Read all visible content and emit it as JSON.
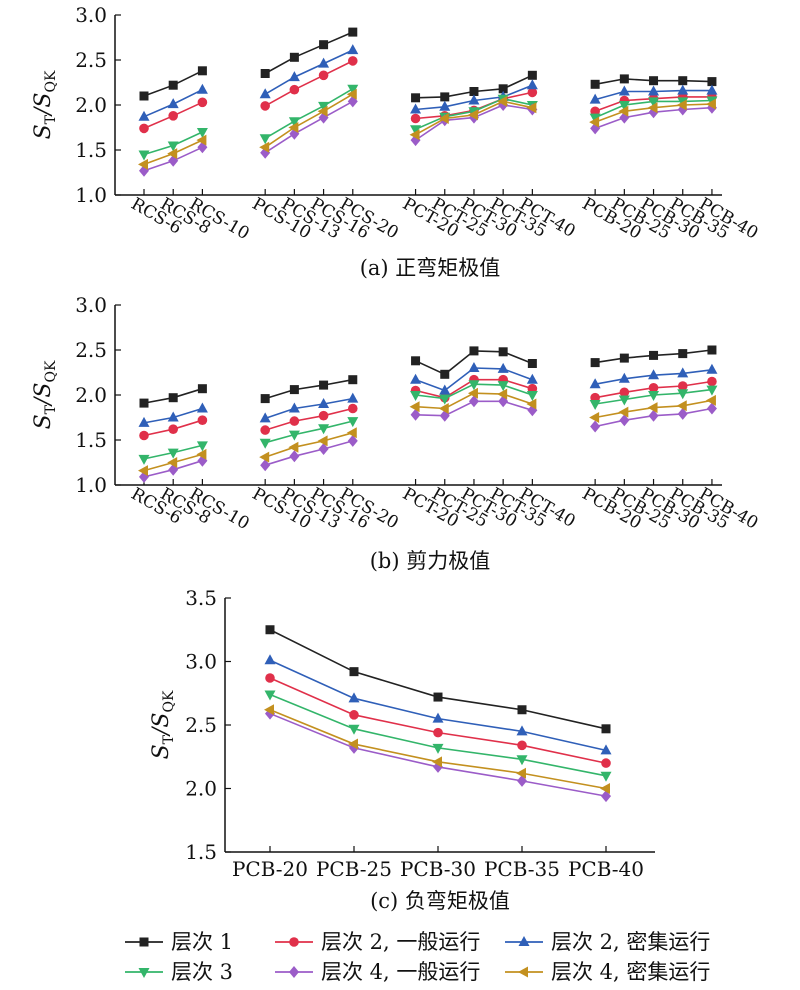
{
  "colors": {
    "series": [
      "#222222",
      "#e0304a",
      "#2f5fb8",
      "#33b56a",
      "#9b5cc8",
      "#c3901f"
    ]
  },
  "legend": {
    "entries": [
      "层次 1",
      "层次 2, 一般运行",
      "层次 2, 密集运行",
      "层次 3",
      "层次 4, 一般运行",
      "层次 4, 密集运行"
    ],
    "markers": [
      "square",
      "circle",
      "triangle-up",
      "triangle-down",
      "diamond",
      "triangle-left"
    ]
  },
  "chart_data": [
    {
      "type": "line",
      "caption": "(a) 正弯矩极值",
      "ylabel": "ST/SQK",
      "ylabel_main": "S",
      "ylabel_sub1": "T",
      "ylabel_sub2": "QK",
      "ylim": [
        1.0,
        3.0
      ],
      "yticks": [
        "1.0",
        "1.5",
        "2.0",
        "2.5",
        "3.0"
      ],
      "groups": [
        {
          "categories": [
            "RCS-6",
            "RCS-8",
            "RCS-10"
          ],
          "series": [
            [
              2.1,
              2.22,
              2.38
            ],
            [
              1.74,
              1.88,
              2.03
            ],
            [
              1.87,
              2.01,
              2.17
            ],
            [
              1.45,
              1.55,
              1.7
            ],
            [
              1.27,
              1.38,
              1.53
            ],
            [
              1.34,
              1.46,
              1.61
            ]
          ]
        },
        {
          "categories": [
            "PCS-10",
            "PCS-13",
            "PCS-16",
            "PCS-20"
          ],
          "series": [
            [
              2.35,
              2.53,
              2.67,
              2.81
            ],
            [
              1.99,
              2.17,
              2.33,
              2.49
            ],
            [
              2.12,
              2.31,
              2.46,
              2.61
            ],
            [
              1.63,
              1.82,
              1.99,
              2.18
            ],
            [
              1.47,
              1.68,
              1.86,
              2.04
            ],
            [
              1.53,
              1.75,
              1.93,
              2.12
            ]
          ]
        },
        {
          "categories": [
            "PCT-20",
            "PCT-25",
            "PCT-30",
            "PCT-35",
            "PCT-40"
          ],
          "series": [
            [
              2.08,
              2.09,
              2.15,
              2.18,
              2.33
            ],
            [
              1.85,
              1.88,
              1.94,
              2.07,
              2.14
            ],
            [
              1.95,
              1.98,
              2.05,
              2.09,
              2.22
            ],
            [
              1.73,
              1.87,
              1.93,
              2.07,
              2.0
            ],
            [
              1.61,
              1.83,
              1.86,
              2.0,
              1.95
            ],
            [
              1.67,
              1.85,
              1.89,
              2.04,
              1.97
            ]
          ]
        },
        {
          "categories": [
            "PCB-20",
            "PCB-25",
            "PCB-30",
            "PCB-35",
            "PCB-40"
          ],
          "series": [
            [
              2.23,
              2.29,
              2.27,
              2.27,
              2.26
            ],
            [
              1.93,
              2.05,
              2.07,
              2.09,
              2.09
            ],
            [
              2.06,
              2.15,
              2.15,
              2.16,
              2.16
            ],
            [
              1.86,
              2.0,
              2.04,
              2.04,
              2.05
            ],
            [
              1.74,
              1.86,
              1.92,
              1.95,
              1.97
            ],
            [
              1.81,
              1.93,
              1.97,
              2.0,
              2.01
            ]
          ]
        }
      ]
    },
    {
      "type": "line",
      "caption": "(b) 剪力极值",
      "ylabel": "ST/SQK",
      "ylabel_main": "S",
      "ylabel_sub1": "T",
      "ylabel_sub2": "QK",
      "ylim": [
        1.0,
        3.0
      ],
      "yticks": [
        "1.0",
        "1.5",
        "2.0",
        "2.5",
        "3.0"
      ],
      "groups": [
        {
          "categories": [
            "RCS-6",
            "RCS-8",
            "RCS-10"
          ],
          "series": [
            [
              1.91,
              1.97,
              2.07
            ],
            [
              1.55,
              1.62,
              1.72
            ],
            [
              1.69,
              1.75,
              1.85
            ],
            [
              1.29,
              1.36,
              1.44
            ],
            [
              1.09,
              1.17,
              1.27
            ],
            [
              1.16,
              1.25,
              1.34
            ]
          ]
        },
        {
          "categories": [
            "PCS-10",
            "PCS-13",
            "PCS-16",
            "PCS-20"
          ],
          "series": [
            [
              1.96,
              2.06,
              2.11,
              2.17
            ],
            [
              1.61,
              1.71,
              1.77,
              1.85
            ],
            [
              1.74,
              1.85,
              1.9,
              1.96
            ],
            [
              1.47,
              1.56,
              1.63,
              1.71
            ],
            [
              1.22,
              1.32,
              1.4,
              1.49
            ],
            [
              1.31,
              1.42,
              1.49,
              1.58
            ]
          ]
        },
        {
          "categories": [
            "PCT-20",
            "PCT-25",
            "PCT-30",
            "PCT-35",
            "PCT-40"
          ],
          "series": [
            [
              2.38,
              2.23,
              2.49,
              2.48,
              2.35
            ],
            [
              2.05,
              1.97,
              2.17,
              2.17,
              2.07
            ],
            [
              2.17,
              2.05,
              2.3,
              2.29,
              2.17
            ],
            [
              2.0,
              1.96,
              2.12,
              2.11,
              2.0
            ],
            [
              1.78,
              1.77,
              1.93,
              1.93,
              1.83
            ],
            [
              1.87,
              1.85,
              2.02,
              2.01,
              1.9
            ]
          ]
        },
        {
          "categories": [
            "PCB-20",
            "PCB-25",
            "PCB-30",
            "PCB-35",
            "PCB-40"
          ],
          "series": [
            [
              2.36,
              2.41,
              2.44,
              2.46,
              2.5
            ],
            [
              1.97,
              2.03,
              2.08,
              2.1,
              2.15
            ],
            [
              2.12,
              2.18,
              2.22,
              2.24,
              2.28
            ],
            [
              1.9,
              1.95,
              2.0,
              2.02,
              2.06
            ],
            [
              1.65,
              1.72,
              1.77,
              1.79,
              1.85
            ],
            [
              1.75,
              1.81,
              1.86,
              1.88,
              1.94
            ]
          ]
        }
      ]
    },
    {
      "type": "line",
      "caption": "(c) 负弯矩极值",
      "ylabel": "ST/SQK",
      "ylabel_main": "S",
      "ylabel_sub1": "T",
      "ylabel_sub2": "QK",
      "ylim": [
        1.5,
        3.5
      ],
      "yticks": [
        "1.5",
        "2.0",
        "2.5",
        "3.0",
        "3.5"
      ],
      "groups": [
        {
          "categories": [
            "PCB-20",
            "PCB-25",
            "PCB-30",
            "PCB-35",
            "PCB-40"
          ],
          "series": [
            [
              3.25,
              2.92,
              2.72,
              2.62,
              2.47
            ],
            [
              2.87,
              2.58,
              2.44,
              2.34,
              2.2
            ],
            [
              3.01,
              2.71,
              2.55,
              2.45,
              2.3
            ],
            [
              2.74,
              2.47,
              2.32,
              2.23,
              2.1
            ],
            [
              2.59,
              2.32,
              2.17,
              2.06,
              1.94
            ],
            [
              2.62,
              2.35,
              2.21,
              2.12,
              2.0
            ]
          ]
        }
      ]
    }
  ]
}
